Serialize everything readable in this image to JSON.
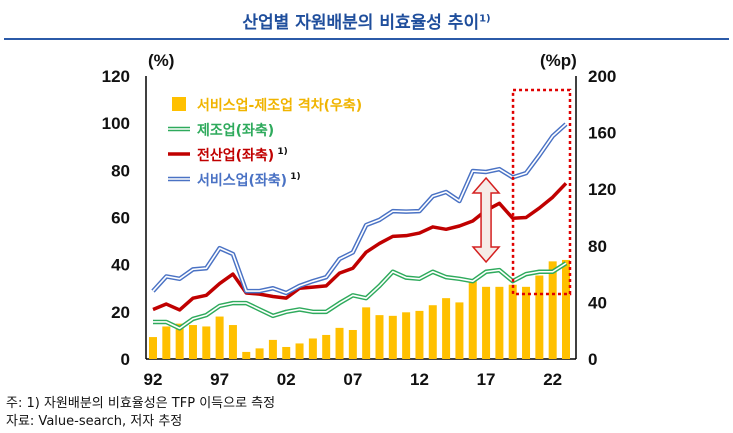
{
  "title": "산업별 자원배분의 비효율성 추이",
  "title_sup": "1)",
  "chart_data": {
    "type": "bar+line",
    "title": "산업별 자원배분의 비효율성 추이1)",
    "left_axis": {
      "label": "(%)",
      "range": [
        0,
        120
      ],
      "ticks": [
        0,
        20,
        40,
        60,
        80,
        100,
        120
      ]
    },
    "right_axis": {
      "label": "(%p)",
      "range": [
        0,
        200
      ],
      "ticks": [
        0,
        40,
        80,
        120,
        160,
        200
      ]
    },
    "x": [
      1992,
      1993,
      1994,
      1995,
      1996,
      1997,
      1998,
      1999,
      2000,
      2001,
      2002,
      2003,
      2004,
      2005,
      2006,
      2007,
      2008,
      2009,
      2010,
      2011,
      2012,
      2013,
      2014,
      2015,
      2016,
      2017,
      2018,
      2019,
      2020,
      2021,
      2022,
      2023
    ],
    "x_tick_labels": [
      "92",
      "97",
      "02",
      "07",
      "12",
      "17",
      "22"
    ],
    "x_tick_years": [
      1992,
      1997,
      2002,
      2007,
      2012,
      2017,
      2022
    ],
    "grid": false,
    "legend_position": "top-left",
    "series": [
      {
        "name": "서비스업-제조업 격차(우축)",
        "type": "bar",
        "axis": "right",
        "color": "#ffc000",
        "values": [
          15.5,
          23,
          25,
          24,
          23,
          30,
          24,
          5,
          7.5,
          13.5,
          8.5,
          11,
          14.5,
          17,
          22,
          20.5,
          36.5,
          31,
          30.5,
          33,
          34,
          38,
          43,
          40,
          56,
          51,
          51,
          52.5,
          51,
          59,
          69,
          70
        ]
      },
      {
        "name": "제조업(좌축)",
        "sup": "",
        "type": "line",
        "axis": "left",
        "color": "#2eaa5c",
        "style": "double",
        "values": [
          15.7,
          15.7,
          13,
          17,
          18.6,
          22.5,
          23.7,
          23.7,
          21,
          18.3,
          20,
          21,
          20,
          20,
          23.7,
          27,
          25.8,
          31,
          37,
          34.5,
          34,
          37,
          34.7,
          34,
          33,
          37,
          37.7,
          33,
          36,
          37,
          37,
          40.6
        ]
      },
      {
        "name": "전산업(좌축)",
        "sup": "1)",
        "type": "line",
        "axis": "left",
        "color": "#c00000",
        "style": "thick",
        "values": [
          21,
          23.3,
          20.8,
          25.8,
          27,
          32,
          36,
          28,
          27.5,
          26.5,
          25.8,
          30,
          30.5,
          31,
          36.4,
          38.5,
          45.3,
          49,
          52,
          52.3,
          53.4,
          56,
          55,
          56.4,
          58.5,
          63,
          66,
          59.7,
          60,
          64,
          68.6,
          74.5
        ]
      },
      {
        "name": "서비스업(좌축)",
        "sup": "1)",
        "type": "line",
        "axis": "left",
        "color": "#4a72c4",
        "style": "double",
        "values": [
          28.8,
          35,
          34,
          38,
          38.5,
          47,
          44.5,
          28.8,
          28.8,
          30,
          28,
          31,
          33,
          34.7,
          42.4,
          45.2,
          56.8,
          59,
          62.7,
          62.5,
          62.7,
          69,
          70.8,
          67,
          79.7,
          79.3,
          80.5,
          77,
          78.8,
          86.4,
          94.5,
          99.6
        ]
      }
    ],
    "annotations": {
      "highlight_box_years": [
        2020,
        2023
      ],
      "double_arrow_year": 2017
    }
  },
  "footnotes": {
    "note": "주: 1) 자원배분의 비효율성은 TFP 이득으로 측정",
    "source": "자료: Value-search, 저자 추정"
  }
}
